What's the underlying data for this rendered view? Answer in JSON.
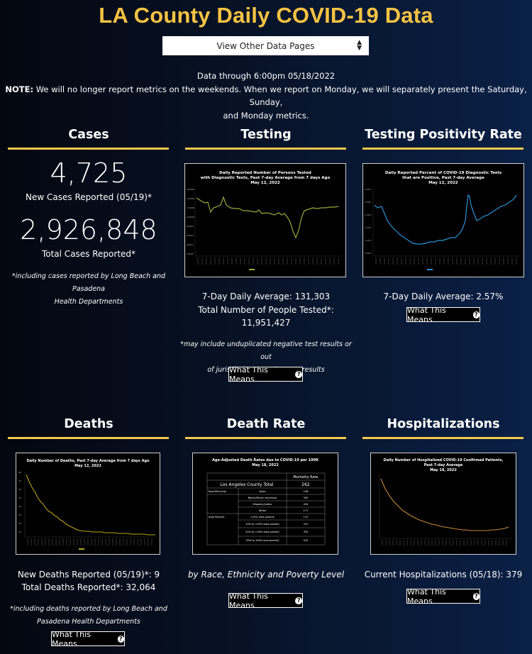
{
  "header": {
    "title": "LA County Daily COVID-19 Data",
    "select_label": "View Other Data Pages",
    "note_line1": "Data through 6:00pm 05/18/2022",
    "note_bold": "NOTE:",
    "note_line2": " We will no longer report metrics on the weekends. When we report on Monday, we will separately present the Saturday, Sunday,",
    "note_line3": "and Monday metrics."
  },
  "cases": {
    "title": "Cases",
    "new_value": "4,725",
    "new_label": "New Cases Reported (05/19)*",
    "total_value": "2,926,848",
    "total_label": "Total Cases Reported*",
    "footnote1": "*including cases reported by Long Beach and Pasadena",
    "footnote2": "Health Departments"
  },
  "testing": {
    "title": "Testing",
    "chart_title1": "Daily Reported Number of Persons Tested",
    "chart_title2": "with Diagnostic Tests, Past 7-day Average from 7 days Ago",
    "chart_title3": "May 12, 2022",
    "avg": "7-Day Daily Average: 131,303",
    "total_label": "Total Number of People Tested*:",
    "total_value": "11,951,427",
    "footnote1": "*may include unduplicated negative test results or out",
    "footnote2": "of jurisdiction negative test results",
    "button": "What This Means"
  },
  "positivity": {
    "title": "Testing Positivity Rate",
    "chart_title1": "Daily Reported Percent of COVID-19 Diagnostic Tests",
    "chart_title2": "that are Positive, Past 7-day Average",
    "chart_title3": "May 12, 2022",
    "avg": "7-Day Daily Average: 2.57%",
    "button": "What This Means"
  },
  "deaths": {
    "title": "Deaths",
    "chart_title1": "Daily Number of Deaths, Past 7-day Average from 7 days Ago",
    "chart_title2": "May 12, 2022",
    "new_label": "New Deaths Reported (05/19)*: 9",
    "total_label": "Total Deaths Reported*: 32,064",
    "footnote1": "*including deaths reported by Long Beach and",
    "footnote2": "Pasadena Health Departments",
    "button": "What This Means"
  },
  "death_rate": {
    "title": "Death Rate",
    "chart_title1": "Age-Adjusted Death Rates due to COVID-19 per 100K",
    "chart_title2": "May 18, 2022",
    "col_header": "Mortality Rate",
    "total_label": "Los Angeles County Total",
    "total_value": "262",
    "group1": "Race/Ethnicity",
    "group2": "Area Poverty",
    "rows": [
      {
        "label": "Asian",
        "value": "198"
      },
      {
        "label": "Black/African American",
        "value": "309"
      },
      {
        "label": "Hispanic/Latino",
        "value": "454"
      },
      {
        "label": "White",
        "value": "177"
      },
      {
        "label": "<10% area poverty",
        "value": "172"
      },
      {
        "label": "10% to <20% area poverty",
        "value": "331"
      },
      {
        "label": "20% to <30% area poverty",
        "value": "392"
      },
      {
        "label": "30% to 100% area poverty",
        "value": "523"
      }
    ],
    "subtitle": "by Race, Ethnicity and Poverty Level",
    "button": "What This Means"
  },
  "hospital": {
    "title": "Hospitalizations",
    "chart_title1": "Daily Number of Hospitalized COVID-19 Confirmed Patients,",
    "chart_title2": "Past 7-day Average",
    "chart_title3": "May 18, 2022",
    "current": "Current Hospitalizations (05/18): 379",
    "button": "What This Means"
  },
  "colors": {
    "accent": "#f2c94c",
    "testing_line": "#9aa83a",
    "positivity_line": "#2b8fd6",
    "deaths_line": "#b8a21a",
    "hospital_line": "#c9873a"
  }
}
